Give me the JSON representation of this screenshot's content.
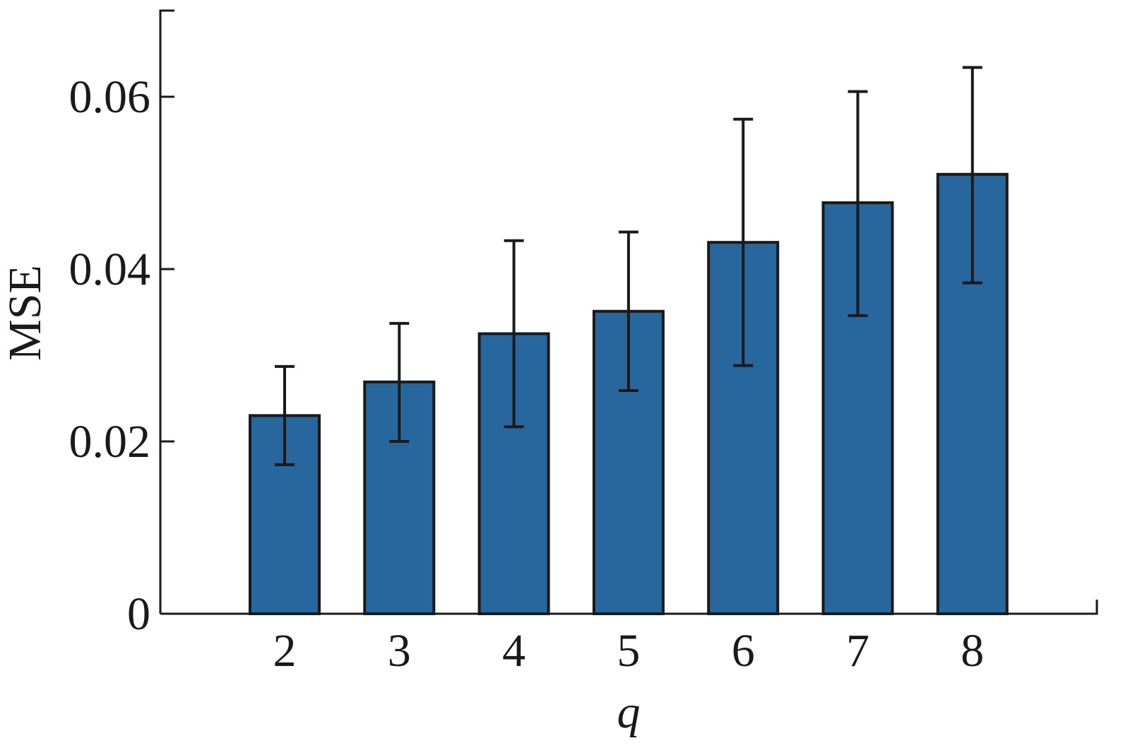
{
  "chart_data": {
    "type": "bar",
    "categories": [
      "2",
      "3",
      "4",
      "5",
      "6",
      "7",
      "8"
    ],
    "values": [
      0.023,
      0.0269,
      0.0325,
      0.0351,
      0.0431,
      0.0477,
      0.051
    ],
    "error_lower": [
      0.0173,
      0.02,
      0.0217,
      0.0259,
      0.0288,
      0.0346,
      0.0384
    ],
    "error_upper": [
      0.0287,
      0.0337,
      0.0433,
      0.0443,
      0.0574,
      0.0606,
      0.0634
    ],
    "title": "",
    "xlabel": "q",
    "ylabel": "MSE",
    "ylim": [
      0,
      0.07
    ],
    "yticks": [
      0,
      0.02,
      0.04,
      0.06
    ],
    "ytick_labels": [
      "0",
      "0.02",
      "0.04",
      "0.06"
    ],
    "grid": false,
    "colors": {
      "bar": "#28679e",
      "edge": "#1a1a1a",
      "axis": "#1a1a1a"
    }
  }
}
